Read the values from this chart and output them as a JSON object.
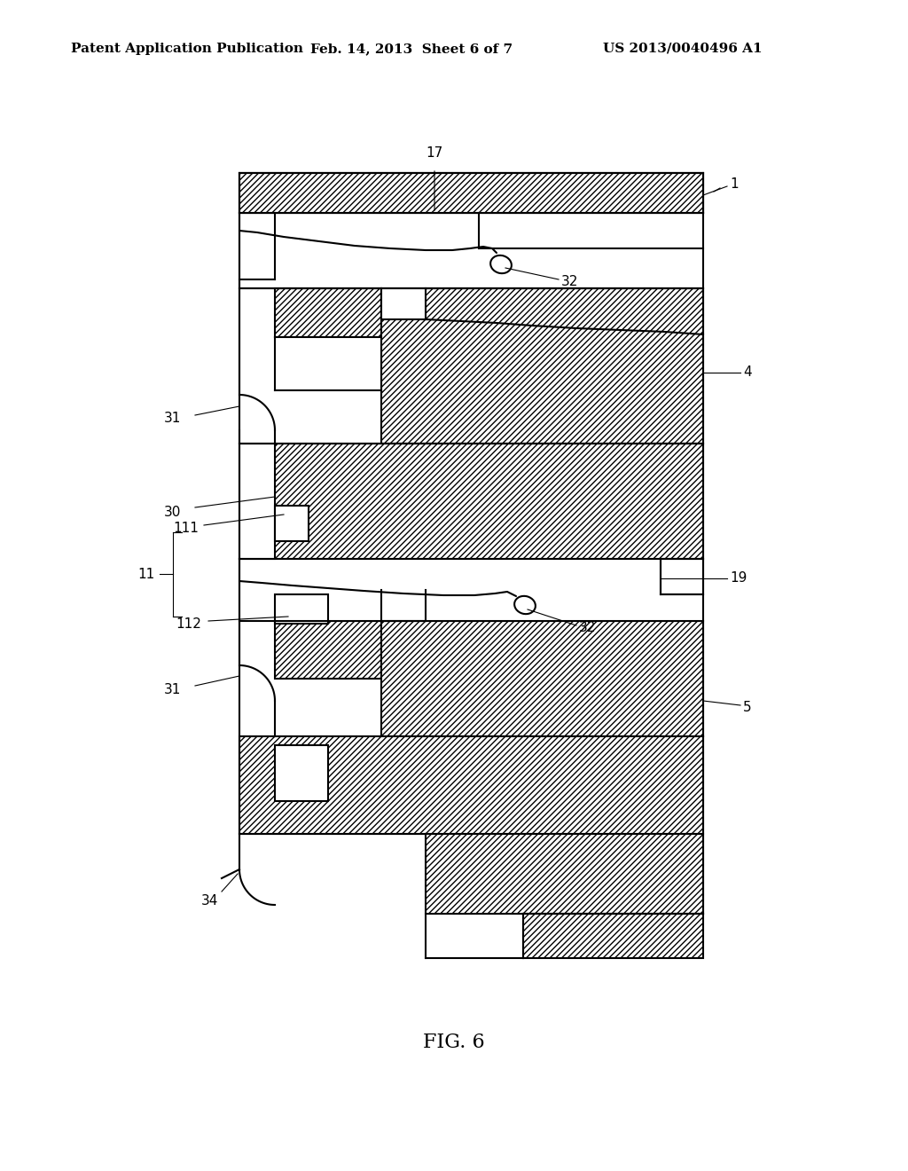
{
  "background_color": "#ffffff",
  "line_color": "#000000",
  "hatch_pattern": "////",
  "header_left": "Patent Application Publication",
  "header_center": "Feb. 14, 2013  Sheet 6 of 7",
  "header_right": "US 2013/0040496 A1",
  "figure_label": "FIG. 6",
  "label_fontsize": 11,
  "header_fontsize": 11
}
